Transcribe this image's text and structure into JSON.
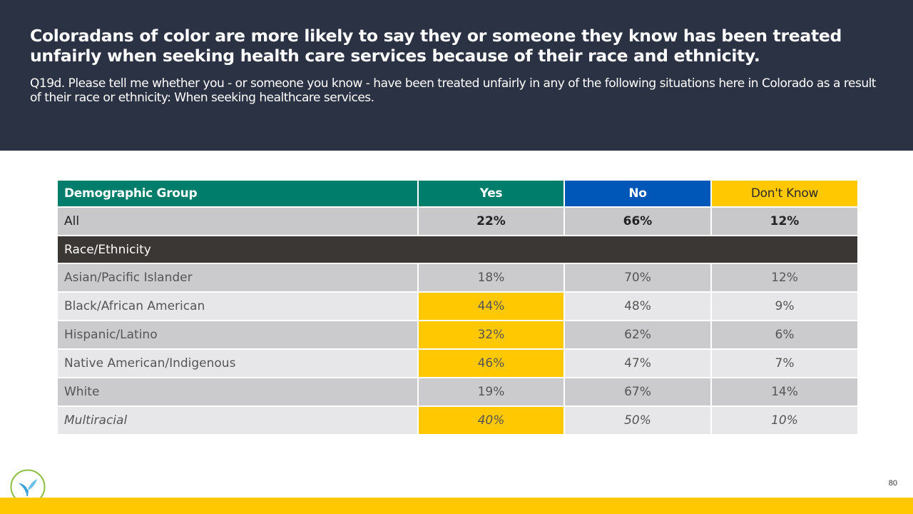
{
  "header": {
    "title": "Coloradans of color are more likely to say they or someone they know has been treated unfairly when seeking health care services because of their race and ethnicity.",
    "subtitle": "Q19d. Please tell me whether you - or someone you know - have been treated unfairly in any of the following situations here in Colorado as a result of their race or ethnicity: When seeking healthcare services."
  },
  "chart_data": {
    "type": "table",
    "columns": [
      "Demographic Group",
      "Yes",
      "No",
      "Don't Know"
    ],
    "column_colors": {
      "Demographic Group": "#007e6b",
      "Yes": "#007e6b",
      "No": "#0057b8",
      "Don't Know": "#ffc800"
    },
    "highlight_color": "#ffc800",
    "all": {
      "label": "All",
      "yes": "22%",
      "no": "66%",
      "dk": "12%"
    },
    "section": "Race/Ethnicity",
    "rows": [
      {
        "label": "Asian/Pacific Islander",
        "yes": "18%",
        "no": "70%",
        "dk": "12%",
        "highlight_yes": false
      },
      {
        "label": "Black/African American",
        "yes": "44%",
        "no": "48%",
        "dk": "9%",
        "highlight_yes": true
      },
      {
        "label": "Hispanic/Latino",
        "yes": "32%",
        "no": "62%",
        "dk": "6%",
        "highlight_yes": true
      },
      {
        "label": "Native American/Indigenous",
        "yes": "46%",
        "no": "47%",
        "dk": "7%",
        "highlight_yes": true
      },
      {
        "label": "White",
        "yes": "19%",
        "no": "67%",
        "dk": "14%",
        "highlight_yes": false
      },
      {
        "label": "Multiracial",
        "yes": "40%",
        "no": "50%",
        "dk": "10%",
        "highlight_yes": true
      }
    ]
  },
  "footer": {
    "page_number": "80",
    "logo_icon": "leaf-logo-icon"
  }
}
